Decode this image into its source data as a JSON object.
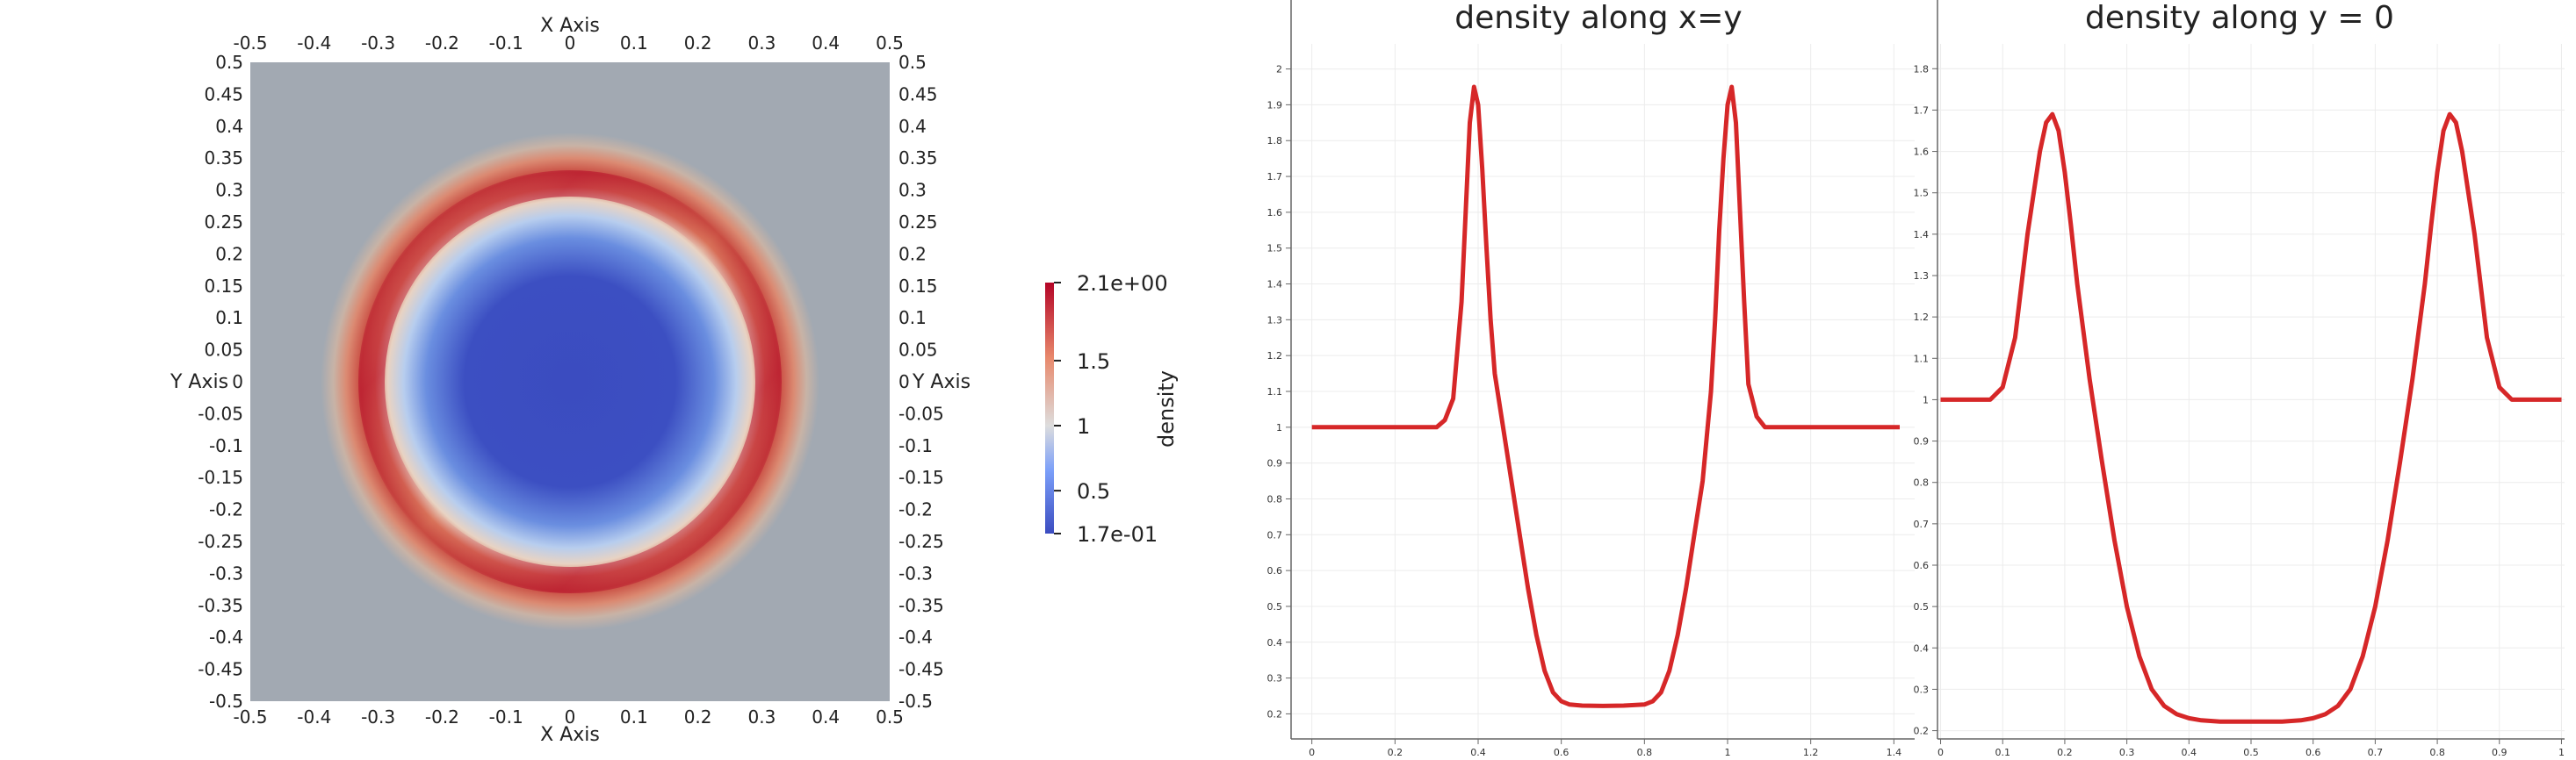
{
  "colors": {
    "low": "#3b4cc0",
    "mid": "#dddddd",
    "high": "#b40426",
    "ring_bg": "#a2a9b2",
    "line": "#d62728"
  },
  "chart_data": [
    {
      "type": "heatmap",
      "title": "",
      "xlabel": "X Axis",
      "ylabel": "Y Axis",
      "xlim": [
        -0.5,
        0.5
      ],
      "ylim": [
        -0.5,
        0.5
      ],
      "xticks": [
        "-0.5",
        "-0.4",
        "-0.3",
        "-0.2",
        "-0.1",
        "0",
        "0.1",
        "0.2",
        "0.3",
        "0.4",
        "0.5"
      ],
      "yticks": [
        "0.5",
        "0.45",
        "0.4",
        "0.35",
        "0.3",
        "0.25",
        "0.2",
        "0.15",
        "0.1",
        "0.05",
        "0",
        "-0.05",
        "-0.1",
        "-0.15",
        "-0.2",
        "-0.25",
        "-0.3",
        "-0.35",
        "-0.4",
        "-0.45",
        "-0.5"
      ],
      "description_values": {
        "background_density": 1.0,
        "core_density": 0.17,
        "ring_peak_density": 2.1,
        "core_radius": 0.24,
        "ring_radius": 0.31
      },
      "colorbar": {
        "label": "density",
        "range": [
          0.17,
          2.1
        ],
        "ticks": [
          {
            "value": 2.1,
            "label": "2.1e+00"
          },
          {
            "value": 1.5,
            "label": "1.5"
          },
          {
            "value": 1.0,
            "label": "1"
          },
          {
            "value": 0.5,
            "label": "0.5"
          },
          {
            "value": 0.17,
            "label": "1.7e-01"
          }
        ]
      }
    },
    {
      "type": "line",
      "title": "density along x=y",
      "xlabel": "",
      "ylabel": "",
      "xlim": [
        -0.05,
        1.45
      ],
      "ylim": [
        0.13,
        2.07
      ],
      "xticks": [
        0,
        0.2,
        0.4,
        0.6,
        0.8,
        1,
        1.2,
        1.4
      ],
      "xtick_labels": [
        "0",
        "0.2",
        "0.4",
        "0.6",
        "0.8",
        "1",
        "1.2",
        "1.4"
      ],
      "yticks": [
        0.2,
        0.3,
        0.4,
        0.5,
        0.6,
        0.7,
        0.8,
        0.9,
        1,
        1.1,
        1.2,
        1.3,
        1.4,
        1.5,
        1.6,
        1.7,
        1.8,
        1.9,
        2
      ],
      "ytick_labels": [
        "0.2",
        "0.3",
        "0.4",
        "0.5",
        "0.6",
        "0.7",
        "0.8",
        "0.9",
        "1",
        "1.1",
        "1.2",
        "1.3",
        "1.4",
        "1.5",
        "1.6",
        "1.7",
        "1.8",
        "1.9",
        "2"
      ],
      "series": [
        {
          "x": [
            0,
            0.3,
            0.32,
            0.34,
            0.36,
            0.37,
            0.38,
            0.39,
            0.4,
            0.41,
            0.42,
            0.43,
            0.44,
            0.46,
            0.48,
            0.5,
            0.52,
            0.54,
            0.56,
            0.58,
            0.6,
            0.62,
            0.65,
            0.7,
            0.75,
            0.8,
            0.82,
            0.84,
            0.86,
            0.88,
            0.9,
            0.92,
            0.94,
            0.96,
            0.97,
            0.98,
            0.99,
            1.0,
            1.01,
            1.02,
            1.03,
            1.04,
            1.05,
            1.07,
            1.09,
            1.11,
            1.2,
            1.3,
            1.414
          ],
          "values": [
            1.0,
            1.0,
            1.02,
            1.08,
            1.35,
            1.6,
            1.85,
            1.95,
            1.9,
            1.72,
            1.5,
            1.3,
            1.15,
            1.0,
            0.85,
            0.7,
            0.55,
            0.42,
            0.32,
            0.26,
            0.235,
            0.226,
            0.223,
            0.222,
            0.223,
            0.226,
            0.235,
            0.26,
            0.32,
            0.42,
            0.55,
            0.7,
            0.85,
            1.1,
            1.3,
            1.55,
            1.75,
            1.9,
            1.95,
            1.85,
            1.6,
            1.35,
            1.12,
            1.03,
            1.0,
            1.0,
            1.0,
            1.0,
            1.0
          ]
        }
      ]
    },
    {
      "type": "line",
      "title": "density along y = 0",
      "xlabel": "",
      "ylabel": "",
      "xlim": [
        -0.005,
        1.005
      ],
      "ylim": [
        0.18,
        1.86
      ],
      "xticks": [
        0,
        0.1,
        0.2,
        0.3,
        0.4,
        0.5,
        0.6,
        0.7,
        0.8,
        0.9,
        1
      ],
      "xtick_labels": [
        "0",
        "0.1",
        "0.2",
        "0.3",
        "0.4",
        "0.5",
        "0.6",
        "0.7",
        "0.8",
        "0.9",
        "1"
      ],
      "yticks": [
        0.2,
        0.3,
        0.4,
        0.5,
        0.6,
        0.7,
        0.8,
        0.9,
        1,
        1.1,
        1.2,
        1.3,
        1.4,
        1.5,
        1.6,
        1.7,
        1.8
      ],
      "ytick_labels": [
        "0.2",
        "0.3",
        "0.4",
        "0.5",
        "0.6",
        "0.7",
        "0.8",
        "0.9",
        "1",
        "1.1",
        "1.2",
        "1.3",
        "1.4",
        "1.5",
        "1.6",
        "1.7",
        "1.8"
      ],
      "series": [
        {
          "x": [
            0,
            0.08,
            0.1,
            0.12,
            0.14,
            0.16,
            0.17,
            0.18,
            0.19,
            0.2,
            0.21,
            0.22,
            0.24,
            0.26,
            0.28,
            0.3,
            0.32,
            0.34,
            0.36,
            0.38,
            0.4,
            0.42,
            0.45,
            0.5,
            0.55,
            0.58,
            0.6,
            0.62,
            0.64,
            0.66,
            0.68,
            0.7,
            0.72,
            0.74,
            0.76,
            0.78,
            0.79,
            0.8,
            0.81,
            0.82,
            0.83,
            0.84,
            0.86,
            0.88,
            0.9,
            0.92,
            1.0
          ],
          "values": [
            1.0,
            1.0,
            1.03,
            1.15,
            1.4,
            1.6,
            1.67,
            1.69,
            1.65,
            1.55,
            1.42,
            1.28,
            1.05,
            0.85,
            0.66,
            0.5,
            0.38,
            0.3,
            0.26,
            0.24,
            0.23,
            0.225,
            0.222,
            0.222,
            0.222,
            0.225,
            0.23,
            0.24,
            0.26,
            0.3,
            0.38,
            0.5,
            0.66,
            0.85,
            1.05,
            1.28,
            1.42,
            1.55,
            1.65,
            1.69,
            1.67,
            1.6,
            1.4,
            1.15,
            1.03,
            1.0,
            1.0
          ]
        }
      ]
    }
  ]
}
